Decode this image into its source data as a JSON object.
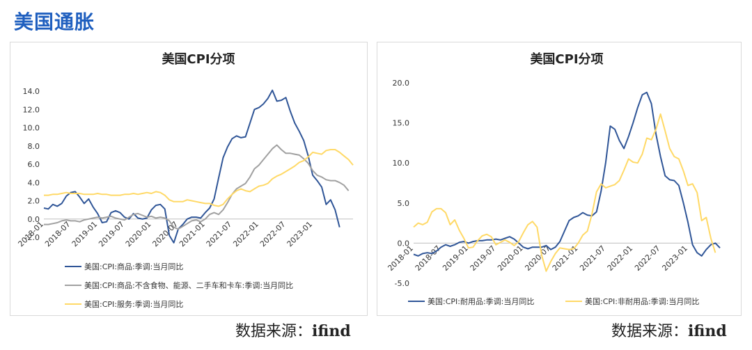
{
  "header": {
    "title": "美国通胀"
  },
  "footer": {
    "source_label": "数据来源：",
    "source_value": "ifind"
  },
  "styles": {
    "heading_color": "#1f5fbf",
    "blue": "#2f5597",
    "gray": "#a0a0a0",
    "yellow": "#ffd966"
  },
  "chart_data": [
    {
      "type": "line",
      "title": "美国CPI分项",
      "ylim": [
        -2.0,
        14.0
      ],
      "yticks": [
        "14.0",
        "12.0",
        "10.0",
        "8.0",
        "6.0",
        "4.0",
        "2.0",
        "0.0",
        "-2.0"
      ],
      "x_start": "2018-01",
      "xticks": [
        "2018-01",
        "2018-07",
        "2019-01",
        "2019-07",
        "2020-01",
        "2020-07",
        "2021-01",
        "2021-07",
        "2022-01",
        "2022-07",
        "2023-01"
      ],
      "series": [
        {
          "name": "美国:CPI:商品:季调:当月同比",
          "color": "#2f5597",
          "values": [
            1.2,
            1.1,
            1.6,
            1.4,
            1.7,
            2.5,
            2.9,
            3.0,
            2.4,
            1.7,
            2.2,
            1.3,
            0.6,
            -0.4,
            -0.3,
            0.7,
            0.9,
            0.7,
            0.2,
            0.0,
            0.6,
            0.1,
            0.0,
            0.1,
            1.0,
            1.5,
            1.6,
            1.1,
            -1.8,
            -2.6,
            -1.1,
            -0.6,
            0.0,
            0.2,
            0.2,
            0.1,
            0.7,
            1.2,
            2.2,
            4.5,
            6.7,
            7.9,
            8.8,
            9.1,
            8.9,
            9.0,
            10.5,
            12.0,
            12.2,
            12.6,
            13.2,
            14.1,
            12.9,
            13.0,
            13.3,
            11.8,
            10.5,
            9.6,
            8.6,
            6.9,
            4.8,
            4.2,
            3.5,
            1.6,
            2.1,
            1.0,
            -0.9
          ]
        },
        {
          "name": "美国:CPI:商品:不含食物、能源、二手车和卡车:季调:当月同比",
          "color": "#a0a0a0",
          "values": [
            -0.6,
            -0.6,
            -0.5,
            -0.4,
            -0.2,
            -0.1,
            -0.2,
            -0.2,
            -0.3,
            -0.1,
            0.0,
            0.1,
            0.2,
            0.1,
            0.2,
            0.3,
            0.1,
            0.0,
            -0.1,
            0.2,
            0.5,
            0.6,
            0.4,
            0.2,
            0.3,
            0.1,
            0.2,
            0.1,
            -0.2,
            -0.9,
            -1.1,
            -0.8,
            -0.5,
            -0.2,
            -0.1,
            -0.3,
            0.0,
            0.5,
            0.7,
            0.5,
            1.0,
            1.8,
            2.7,
            3.3,
            3.6,
            3.9,
            4.6,
            5.5,
            5.9,
            6.5,
            7.1,
            7.7,
            8.1,
            7.6,
            7.2,
            7.2,
            7.1,
            7.0,
            6.6,
            6.1,
            5.3,
            4.8,
            4.6,
            4.3,
            4.2,
            4.2,
            4.0,
            3.7,
            3.1
          ]
        },
        {
          "name": "美国:CPI:服务:季调:当月同比",
          "color": "#ffd966",
          "values": [
            2.6,
            2.6,
            2.7,
            2.7,
            2.8,
            2.9,
            2.8,
            2.8,
            2.8,
            2.7,
            2.7,
            2.7,
            2.8,
            2.7,
            2.7,
            2.6,
            2.6,
            2.6,
            2.7,
            2.7,
            2.8,
            2.7,
            2.8,
            2.9,
            2.8,
            3.0,
            2.9,
            2.6,
            2.1,
            1.9,
            1.9,
            1.9,
            2.1,
            2.0,
            1.9,
            1.8,
            1.7,
            1.7,
            1.5,
            1.4,
            1.6,
            2.2,
            2.7,
            3.1,
            3.3,
            3.1,
            3.0,
            3.3,
            3.6,
            3.7,
            3.9,
            4.4,
            4.7,
            4.9,
            5.2,
            5.5,
            5.8,
            6.2,
            6.4,
            6.8,
            7.3,
            7.2,
            7.1,
            7.5,
            7.6,
            7.6,
            7.3,
            6.9,
            6.5,
            5.9
          ]
        }
      ]
    },
    {
      "type": "line",
      "title": "美国CPI分项",
      "ylim": [
        -5.0,
        20.0
      ],
      "yticks": [
        "20.0",
        "15.0",
        "10.0",
        "5.0",
        "0.0",
        "-5.0"
      ],
      "x_start": "2018-01",
      "xticks": [
        "2018-01",
        "2018-07",
        "2019-01",
        "2019-07",
        "2020-01",
        "2020-07",
        "2021-01",
        "2021-07",
        "2022-01",
        "2022-07",
        "2023-01"
      ],
      "series": [
        {
          "name": "美国:CPI:耐用品:季调:当月同比",
          "color": "#2f5597",
          "values": [
            -1.4,
            -1.6,
            -1.3,
            -1.2,
            -1.3,
            -1.0,
            -0.5,
            -0.2,
            -0.4,
            -0.2,
            0.1,
            0.2,
            0.0,
            0.2,
            0.3,
            0.3,
            0.4,
            0.4,
            0.5,
            0.4,
            0.6,
            0.8,
            0.5,
            0.0,
            -0.5,
            -0.7,
            -0.5,
            -0.5,
            -0.5,
            -0.3,
            -0.8,
            -0.5,
            0.2,
            1.5,
            2.8,
            3.2,
            3.4,
            3.8,
            3.5,
            3.4,
            3.9,
            6.5,
            10.0,
            14.6,
            14.2,
            12.8,
            11.8,
            13.3,
            15.0,
            16.9,
            18.5,
            18.8,
            17.4,
            13.6,
            10.8,
            8.4,
            7.9,
            7.8,
            7.2,
            5.0,
            2.6,
            -0.2,
            -1.2,
            -1.6,
            -0.8,
            -0.2,
            0.0,
            -0.6
          ]
        },
        {
          "name": "美国:CPI:非耐用品:季调:当月同比",
          "color": "#ffd966",
          "values": [
            2.0,
            2.5,
            2.3,
            2.6,
            3.9,
            4.3,
            4.3,
            3.8,
            2.3,
            2.9,
            1.6,
            0.6,
            -0.6,
            -0.5,
            0.3,
            0.9,
            1.1,
            0.8,
            -0.2,
            0.1,
            0.4,
            0.1,
            -0.3,
            0.2,
            1.3,
            2.3,
            2.7,
            2.0,
            -1.5,
            -3.5,
            -2.3,
            -1.3,
            -0.6,
            -0.7,
            -0.8,
            -0.7,
            0.0,
            1.0,
            1.5,
            3.6,
            6.4,
            7.4,
            6.9,
            7.1,
            7.3,
            7.8,
            9.1,
            10.5,
            10.1,
            10.0,
            11.1,
            13.1,
            12.9,
            14.2,
            16.1,
            14.0,
            11.8,
            10.8,
            10.5,
            9.0,
            7.2,
            7.4,
            6.3,
            2.8,
            3.2,
            0.6,
            -1.2
          ]
        }
      ]
    }
  ]
}
